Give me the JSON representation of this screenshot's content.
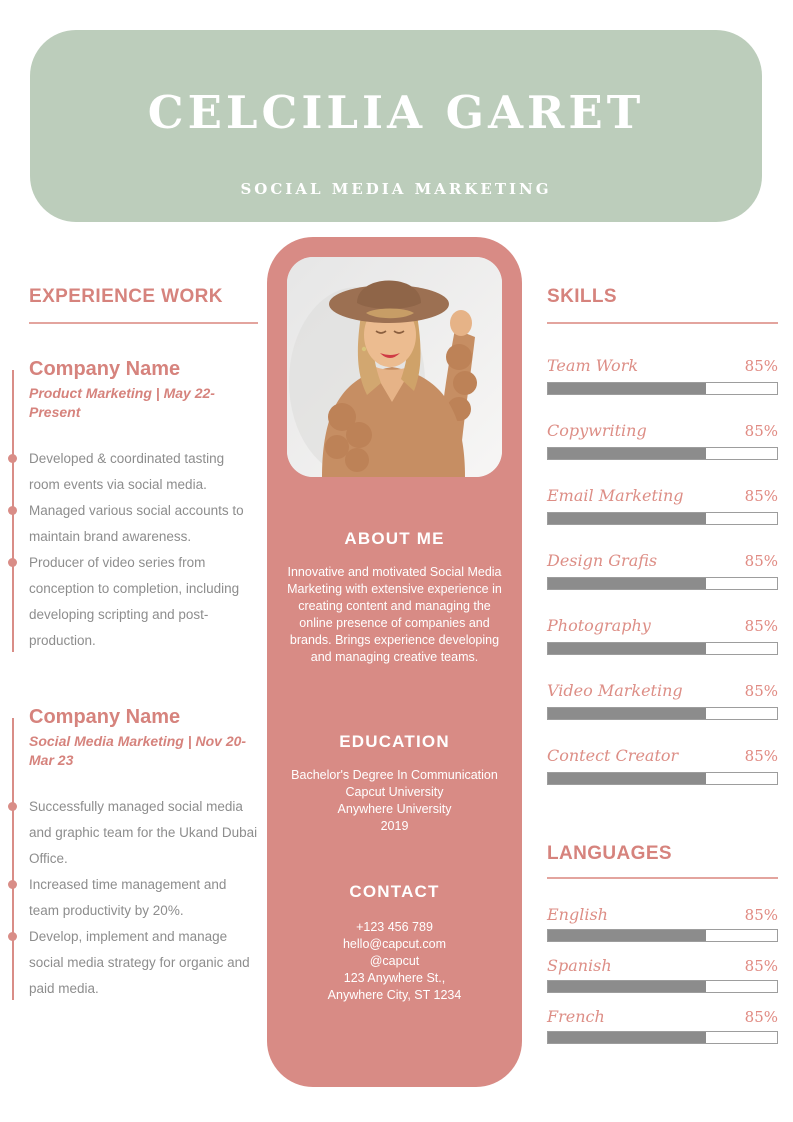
{
  "colors": {
    "banner_green": "#bccdbb",
    "panel_pink": "#d88b85",
    "accent_pink_text": "#d6837d",
    "timeline_pink": "#d98d87",
    "body_gray": "#8d8d8d",
    "bar_fill_gray": "#8c8c8c",
    "bar_border_gray": "#9d9d9d"
  },
  "header": {
    "name": "CELCILIA GARET",
    "subtitle": "SOCIAL MEDIA MARKETING"
  },
  "experience": {
    "title": "EXPERIENCE WORK",
    "jobs": [
      {
        "company": "Company Name",
        "meta": "Product Marketing | May 22-Present",
        "bullets": [
          "Developed & coordinated tasting room events via social media.",
          "Managed various social accounts to maintain brand awareness.",
          "Producer of video series from conception to completion, including developing scripting and post-production."
        ]
      },
      {
        "company": "Company Name",
        "meta": "Social Media Marketing | Nov 20-Mar 23",
        "bullets": [
          "Successfully managed social media and graphic team for the Ukand Dubai Office.",
          "Increased time management and team productivity by 20%.",
          "Develop, implement and manage social media strategy for organic and paid media."
        ]
      }
    ]
  },
  "profile": {
    "photo_alt": "portrait-photo",
    "about_title": "ABOUT ME",
    "about_text": "Innovative and motivated Social Media Marketing with extensive experience in creating content and managing the online presence of companies and brands. Brings experience developing and managing creative teams.",
    "education_title": "EDUCATION",
    "education_lines": [
      "Bachelor's Degree In Communication",
      "Capcut University",
      "Anywhere University",
      "2019"
    ],
    "contact_title": "CONTACT",
    "contact_lines": [
      "+123  456 789",
      "hello@capcut.com",
      "@capcut",
      "123 Anywhere St.,",
      "Anywhere City, ST 1234"
    ]
  },
  "skills": {
    "title": "SKILLS",
    "items": [
      {
        "label": "Team Work",
        "percent_label": "85%",
        "fill": 69
      },
      {
        "label": "Copywriting",
        "percent_label": "85%",
        "fill": 69
      },
      {
        "label": "Email Marketing",
        "percent_label": "85%",
        "fill": 69
      },
      {
        "label": "Design Grafis",
        "percent_label": "85%",
        "fill": 69
      },
      {
        "label": "Photography",
        "percent_label": "85%",
        "fill": 69
      },
      {
        "label": "Video Marketing",
        "percent_label": "85%",
        "fill": 69
      },
      {
        "label": "Contect Creator",
        "percent_label": "85%",
        "fill": 69
      }
    ]
  },
  "languages": {
    "title": "LANGUAGES",
    "items": [
      {
        "label": "English",
        "percent_label": "85%",
        "fill": 69
      },
      {
        "label": "Spanish",
        "percent_label": "85%",
        "fill": 69
      },
      {
        "label": "French",
        "percent_label": "85%",
        "fill": 69
      }
    ]
  }
}
